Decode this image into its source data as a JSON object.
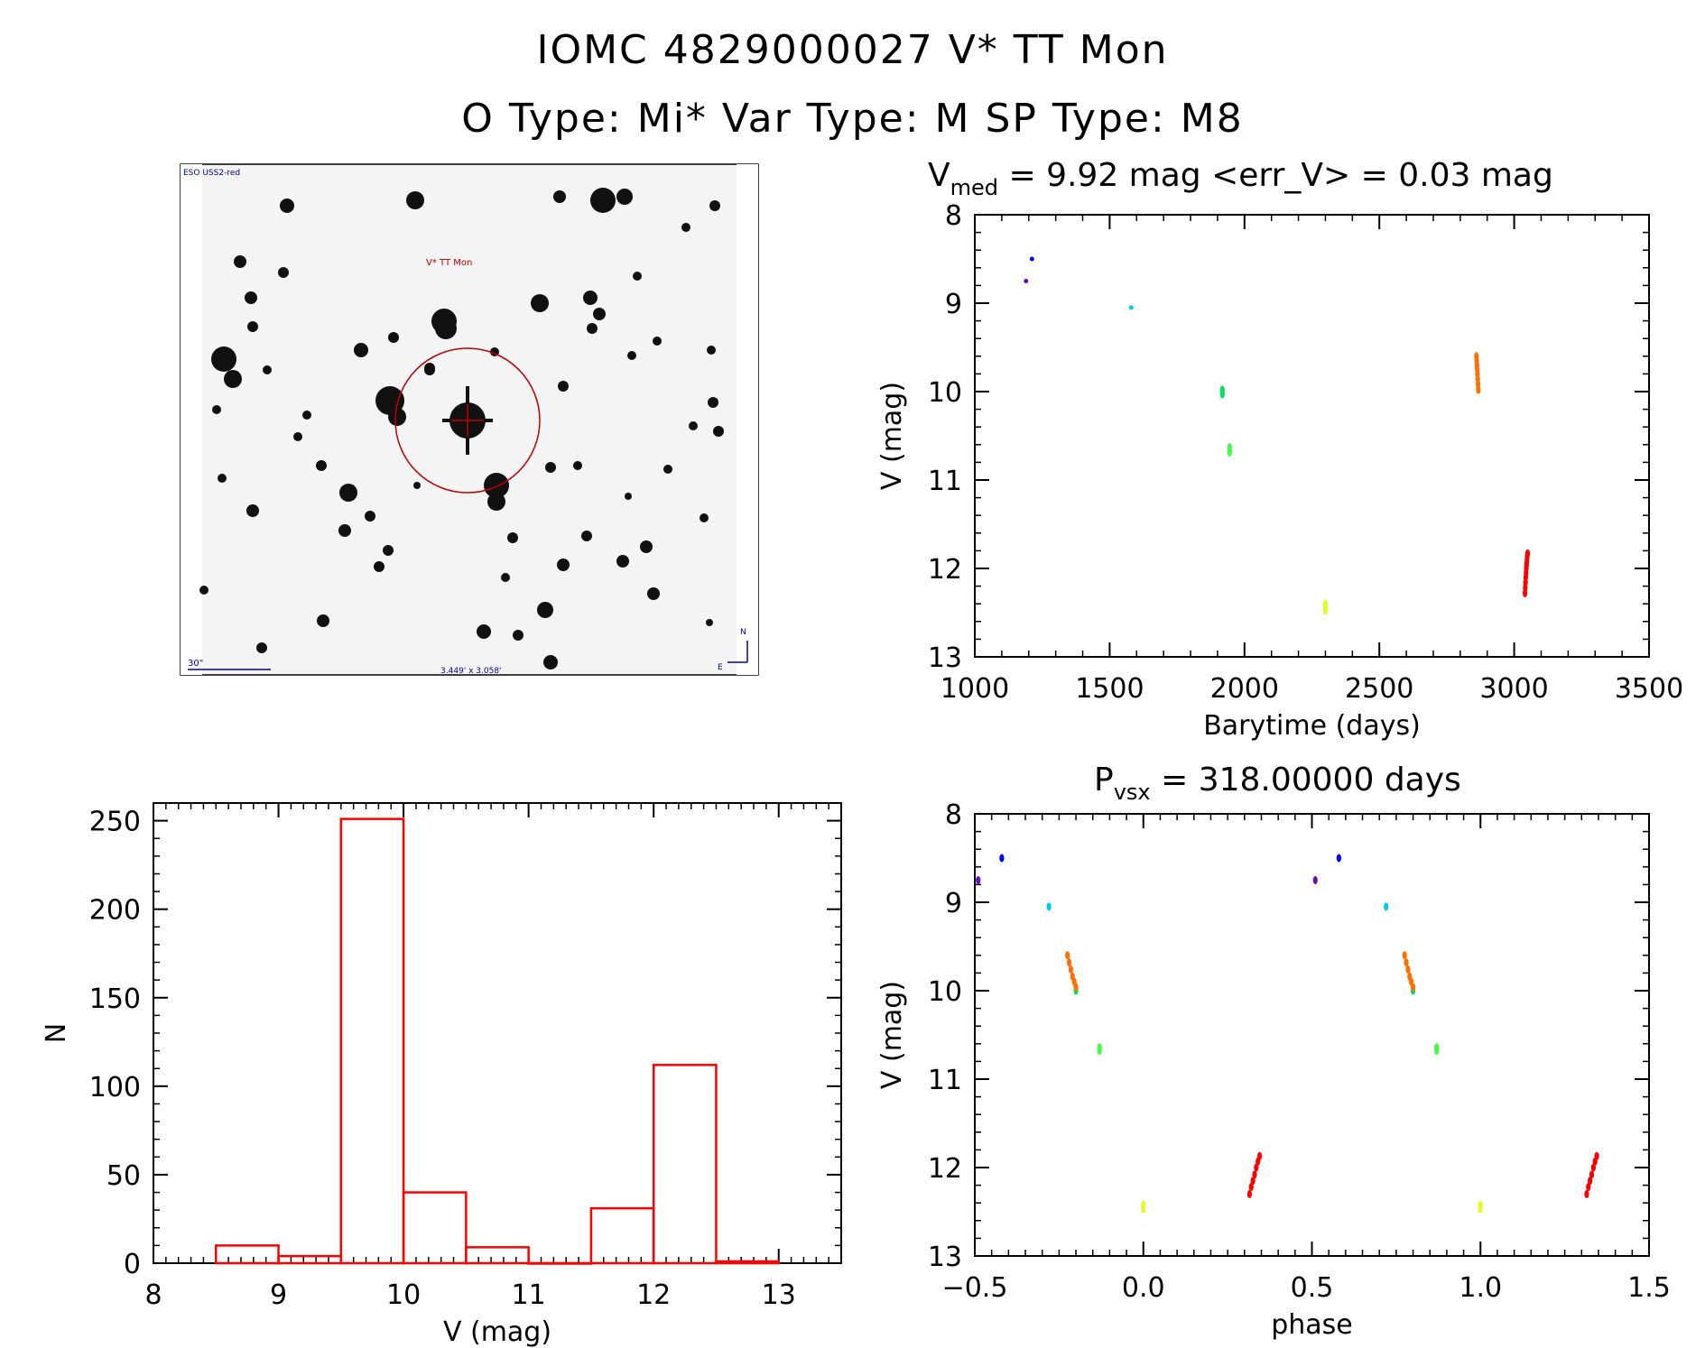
{
  "header": {
    "line1": "IOMC 4829000027    V* TT Mon",
    "line2": "O Type: Mi*  Var Type: M   SP Type: M8"
  },
  "image_panel": {
    "survey_label": "ESO USS2-red",
    "target_label": "V* TT Mon",
    "scale_label": "30\"",
    "fov_label": "3.449' x 3.058'",
    "north": "N",
    "east": "E",
    "colors": {
      "target": "#c00000",
      "overlay": "#0000aa"
    }
  },
  "chart_data": [
    {
      "id": "lightcurve",
      "type": "scatter",
      "title_parts": {
        "v": "V",
        "sub": "med",
        "rest": " = 9.92 mag <err_V> = 0.03 mag"
      },
      "xlabel": "Barytime (days)",
      "ylabel": "V (mag)",
      "xlim": [
        1000,
        3500
      ],
      "ylim": [
        13,
        8
      ],
      "xticks": [
        1000,
        1500,
        2000,
        2500,
        3000,
        3500
      ],
      "yticks": [
        8,
        9,
        10,
        11,
        12,
        13
      ],
      "series": [
        {
          "name": "s1",
          "color": "#6a0dad",
          "x": [
            1190
          ],
          "y": [
            8.75
          ]
        },
        {
          "name": "s2",
          "color": "#0000ff",
          "x": [
            1212
          ],
          "y": [
            8.5
          ]
        },
        {
          "name": "s3",
          "color": "#00c8ff",
          "x": [
            1580
          ],
          "y": [
            9.05
          ]
        },
        {
          "name": "s4",
          "color": "#00e060",
          "x": [
            1918,
            1918,
            1918
          ],
          "y": [
            9.98,
            10.0,
            10.03
          ]
        },
        {
          "name": "s5",
          "color": "#40ff40",
          "x": [
            1945,
            1945,
            1945
          ],
          "y": [
            10.63,
            10.66,
            10.69
          ]
        },
        {
          "name": "s6",
          "color": "#e0ff20",
          "x": [
            2300,
            2300,
            2300
          ],
          "y": [
            12.4,
            12.44,
            12.48
          ]
        },
        {
          "name": "s7",
          "color": "#ff7000",
          "x": [
            2860,
            2861,
            2862,
            2863,
            2864,
            2865,
            2866,
            2867
          ],
          "y": [
            9.6,
            9.65,
            9.7,
            9.75,
            9.8,
            9.86,
            9.92,
            9.98
          ]
        },
        {
          "name": "s8",
          "color": "#ff0000",
          "x": [
            3040,
            3041,
            3042,
            3043,
            3044,
            3045,
            3046,
            3047,
            3048,
            3049,
            3050
          ],
          "y": [
            12.28,
            12.22,
            12.16,
            12.1,
            12.05,
            12.0,
            11.96,
            11.92,
            11.88,
            11.85,
            11.83
          ]
        }
      ]
    },
    {
      "id": "histogram",
      "type": "bar",
      "xlabel": "V (mag)",
      "ylabel": "N",
      "xlim": [
        8,
        13.5
      ],
      "ylim": [
        0,
        260
      ],
      "xticks": [
        8,
        9,
        10,
        11,
        12,
        13
      ],
      "yticks": [
        0,
        50,
        100,
        150,
        200,
        250
      ],
      "bin_edges": [
        8.5,
        9.0,
        9.5,
        10.0,
        10.5,
        11.0,
        11.5,
        12.0,
        12.5,
        13.0
      ],
      "values": [
        10,
        4,
        251,
        40,
        9,
        0,
        31,
        112,
        1
      ],
      "color": "#ff0000"
    },
    {
      "id": "phased",
      "type": "scatter",
      "title_parts": {
        "v": "P",
        "sub": "vsx",
        "rest": " = 318.00000 days"
      },
      "xlabel": "phase",
      "ylabel": "V (mag)",
      "xlim": [
        -0.5,
        1.5
      ],
      "ylim": [
        13,
        8
      ],
      "xticks": [
        -0.5,
        0.0,
        0.5,
        1.0,
        1.5
      ],
      "xtick_labels": [
        "−0.5",
        "0.0",
        "0.5",
        "1.0",
        "1.5"
      ],
      "yticks": [
        8,
        9,
        10,
        11,
        12,
        13
      ],
      "series": [
        {
          "name": "s1",
          "color": "#6a0dad",
          "x": [
            -0.49,
            0.51
          ],
          "y": [
            8.75,
            8.75
          ]
        },
        {
          "name": "s2",
          "color": "#0000ff",
          "x": [
            -0.42,
            0.58
          ],
          "y": [
            8.5,
            8.5
          ]
        },
        {
          "name": "s3",
          "color": "#00c8ff",
          "x": [
            -0.28,
            0.72
          ],
          "y": [
            9.05,
            9.05
          ]
        },
        {
          "name": "s4",
          "color": "#00e060",
          "x": [
            -0.2,
            0.8
          ],
          "y": [
            10.0,
            10.0
          ]
        },
        {
          "name": "s5",
          "color": "#40ff40",
          "x": [
            -0.13,
            -0.13,
            0.87,
            0.87
          ],
          "y": [
            10.64,
            10.68,
            10.64,
            10.68
          ]
        },
        {
          "name": "s6",
          "color": "#e0ff20",
          "x": [
            0.0,
            0.0,
            1.0,
            1.0
          ],
          "y": [
            12.42,
            12.47,
            12.42,
            12.47
          ]
        },
        {
          "name": "s7",
          "color": "#ff7000",
          "x": [
            -0.225,
            -0.22,
            -0.215,
            -0.21,
            -0.205,
            -0.2,
            0.775,
            0.78,
            0.785,
            0.79,
            0.795,
            0.8
          ],
          "y": [
            9.6,
            9.68,
            9.76,
            9.84,
            9.9,
            9.96,
            9.6,
            9.68,
            9.76,
            9.84,
            9.9,
            9.96
          ]
        },
        {
          "name": "s8",
          "color": "#ff0000",
          "x": [
            0.315,
            0.32,
            0.325,
            0.33,
            0.335,
            0.34,
            0.345,
            1.315,
            1.32,
            1.325,
            1.33,
            1.335,
            1.34,
            1.345
          ],
          "y": [
            12.3,
            12.22,
            12.15,
            12.08,
            12.0,
            11.93,
            11.87,
            12.3,
            12.22,
            12.15,
            12.08,
            12.0,
            11.93,
            11.87
          ]
        }
      ]
    }
  ]
}
